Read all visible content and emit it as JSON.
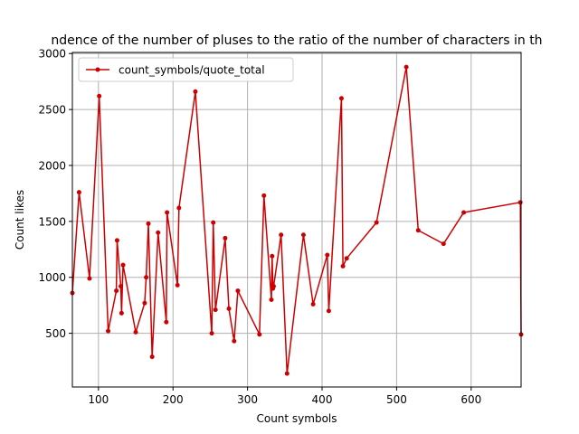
{
  "chart_data": {
    "type": "line",
    "title": "ndence of the number of pluses to the ratio of the number of characters in th",
    "xlabel": "Count symbols",
    "ylabel": "Count likes",
    "xlim": [
      65,
      667
    ],
    "ylim": [
      20,
      3010
    ],
    "xticks": [
      100,
      200,
      300,
      400,
      500,
      600
    ],
    "yticks": [
      500,
      1000,
      1500,
      2000,
      2500,
      3000
    ],
    "grid": true,
    "legend": "top-left",
    "color": "#cc0000",
    "series": [
      {
        "name": "count_symbols/quote_total",
        "x": [
          65,
          74,
          88,
          101,
          113,
          124,
          125,
          130,
          131,
          133,
          150,
          162,
          164,
          167,
          172,
          180,
          191,
          192,
          206,
          208,
          230,
          252,
          254,
          257,
          270,
          275,
          282,
          287,
          316,
          322,
          332,
          333,
          334,
          335,
          345,
          353,
          375,
          388,
          407,
          409,
          426,
          428,
          433,
          473,
          513,
          529,
          563,
          590,
          666,
          667
        ],
        "y": [
          860,
          1760,
          990,
          2620,
          520,
          880,
          1330,
          920,
          680,
          1110,
          510,
          770,
          1000,
          1480,
          290,
          1400,
          600,
          1580,
          930,
          1620,
          2660,
          500,
          1490,
          710,
          1350,
          720,
          430,
          880,
          490,
          1730,
          800,
          1190,
          900,
          920,
          1380,
          140,
          1380,
          760,
          1200,
          700,
          2600,
          1100,
          1170,
          1490,
          2880,
          1420,
          1300,
          1580,
          1670,
          490
        ]
      }
    ]
  }
}
